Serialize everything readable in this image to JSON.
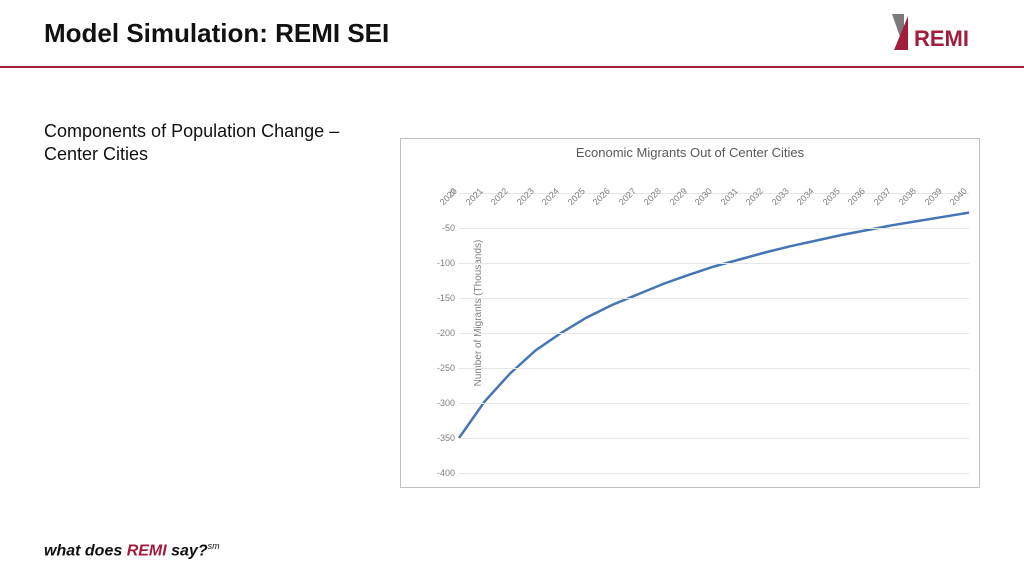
{
  "header": {
    "title": "Model Simulation: REMI SEI",
    "rule_color": "#a01e3c",
    "logo_text": "REMI",
    "logo_accent": "#a01e3c",
    "logo_gray": "#7a7a7a"
  },
  "subtitle": "Components of Population Change – Center Cities",
  "chart": {
    "type": "line",
    "title": "Economic Migrants Out of Center Cities",
    "title_fontsize": 13,
    "title_color": "#595959",
    "ylabel": "Number of Migrants (Thousands)",
    "ylabel_fontsize": 10,
    "ylabel_color": "#7f7f7f",
    "x_categories": [
      "2020",
      "2021",
      "2022",
      "2023",
      "2024",
      "2025",
      "2026",
      "2027",
      "2028",
      "2029",
      "2030",
      "2031",
      "2032",
      "2033",
      "2034",
      "2035",
      "2036",
      "2037",
      "2038",
      "2039",
      "2040"
    ],
    "y_values": [
      -350,
      -298,
      -258,
      -225,
      -200,
      -178,
      -160,
      -145,
      -130,
      -117,
      -105,
      -95,
      -85,
      -76,
      -68,
      -60,
      -53,
      -46,
      -40,
      -34,
      -28
    ],
    "line_color": "#4575b4",
    "line_width": 2.5,
    "ylim": [
      -400,
      0
    ],
    "ytick_step": 50,
    "grid_color": "#e6e6e6",
    "border_color": "#bfbfbf",
    "background_color": "#ffffff",
    "tick_fontsize": 9,
    "tick_color": "#7f7f7f"
  },
  "tagline": {
    "pre": "what does ",
    "brand": "REMI",
    "post": " say?",
    "sm": "sm",
    "brand_color": "#a01e3c"
  }
}
